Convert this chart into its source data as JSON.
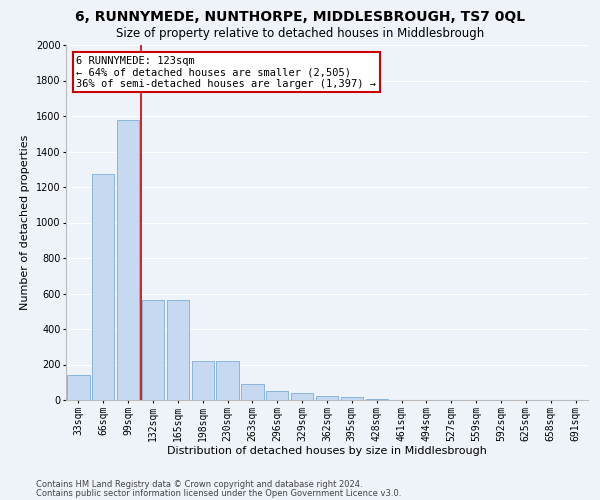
{
  "title": "6, RUNNYMEDE, NUNTHORPE, MIDDLESBROUGH, TS7 0QL",
  "subtitle": "Size of property relative to detached houses in Middlesbrough",
  "xlabel": "Distribution of detached houses by size in Middlesbrough",
  "ylabel": "Number of detached properties",
  "footer_line1": "Contains HM Land Registry data © Crown copyright and database right 2024.",
  "footer_line2": "Contains public sector information licensed under the Open Government Licence v3.0.",
  "bin_labels": [
    "33sqm",
    "66sqm",
    "99sqm",
    "132sqm",
    "165sqm",
    "198sqm",
    "230sqm",
    "263sqm",
    "296sqm",
    "329sqm",
    "362sqm",
    "395sqm",
    "428sqm",
    "461sqm",
    "494sqm",
    "527sqm",
    "559sqm",
    "592sqm",
    "625sqm",
    "658sqm",
    "691sqm"
  ],
  "bar_values": [
    140,
    1275,
    1580,
    565,
    565,
    220,
    220,
    90,
    50,
    40,
    20,
    15,
    5,
    0,
    0,
    0,
    0,
    0,
    0,
    0,
    0
  ],
  "bar_color": "#c6d9f0",
  "bar_edgecolor": "#7badd4",
  "vline_color": "#cc0000",
  "vline_x": 2.5,
  "annotation_text": "6 RUNNYMEDE: 123sqm\n← 64% of detached houses are smaller (2,505)\n36% of semi-detached houses are larger (1,397) →",
  "annotation_box_facecolor": "#ffffff",
  "annotation_box_edgecolor": "#cc0000",
  "ylim": [
    0,
    2000
  ],
  "yticks": [
    0,
    200,
    400,
    600,
    800,
    1000,
    1200,
    1400,
    1600,
    1800,
    2000
  ],
  "bg_color": "#eef2f9",
  "grid_color": "#ffffff",
  "title_fontsize": 10,
  "subtitle_fontsize": 8.5,
  "xlabel_fontsize": 8,
  "ylabel_fontsize": 8,
  "tick_fontsize": 7,
  "annotation_fontsize": 7.5,
  "footer_fontsize": 6
}
